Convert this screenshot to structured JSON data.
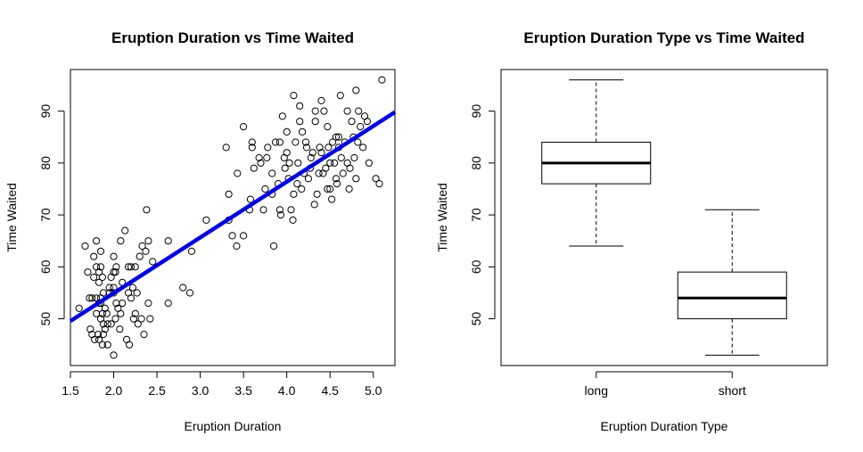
{
  "chart_data": [
    {
      "type": "scatter",
      "title": "Eruption Duration vs Time Waited",
      "xlabel": "Eruption Duration",
      "ylabel": "Time Waited",
      "xlim": [
        1.5,
        5.25
      ],
      "ylim": [
        41,
        98
      ],
      "xticks": [
        "1.5",
        "2.0",
        "2.5",
        "3.0",
        "3.5",
        "4.0",
        "4.5",
        "5.0"
      ],
      "yticks": [
        "50",
        "60",
        "70",
        "80",
        "90"
      ],
      "grid": false,
      "point_color": "#000000",
      "fit_line": {
        "intercept": 33.47,
        "slope": 10.73,
        "color": "#0000ee"
      },
      "points": [
        [
          1.6,
          52
        ],
        [
          1.67,
          64
        ],
        [
          1.7,
          59
        ],
        [
          1.72,
          54
        ],
        [
          1.73,
          48
        ],
        [
          1.75,
          47
        ],
        [
          1.75,
          54
        ],
        [
          1.77,
          62
        ],
        [
          1.77,
          58
        ],
        [
          1.78,
          46
        ],
        [
          1.8,
          54
        ],
        [
          1.8,
          60
        ],
        [
          1.8,
          51
        ],
        [
          1.8,
          65
        ],
        [
          1.82,
          47
        ],
        [
          1.83,
          53
        ],
        [
          1.83,
          57
        ],
        [
          1.83,
          46
        ],
        [
          1.83,
          59
        ],
        [
          1.85,
          53
        ],
        [
          1.85,
          63
        ],
        [
          1.85,
          60
        ],
        [
          1.85,
          50
        ],
        [
          1.85,
          54
        ],
        [
          1.87,
          51
        ],
        [
          1.87,
          45
        ],
        [
          1.87,
          58
        ],
        [
          1.88,
          55
        ],
        [
          1.88,
          49
        ],
        [
          1.88,
          47
        ],
        [
          1.9,
          48
        ],
        [
          1.9,
          52
        ],
        [
          1.92,
          51
        ],
        [
          1.93,
          49
        ],
        [
          1.93,
          45
        ],
        [
          1.95,
          55
        ],
        [
          1.95,
          56
        ],
        [
          1.97,
          58
        ],
        [
          1.97,
          49
        ],
        [
          2.0,
          62
        ],
        [
          2.0,
          56
        ],
        [
          2.0,
          59
        ],
        [
          2.0,
          55
        ],
        [
          2.0,
          43
        ],
        [
          2.02,
          59
        ],
        [
          2.02,
          50
        ],
        [
          2.03,
          53
        ],
        [
          2.03,
          60
        ],
        [
          2.05,
          52
        ],
        [
          2.07,
          48
        ],
        [
          2.08,
          51
        ],
        [
          2.08,
          65
        ],
        [
          2.1,
          53
        ],
        [
          2.1,
          57
        ],
        [
          2.13,
          67
        ],
        [
          2.15,
          46
        ],
        [
          2.17,
          60
        ],
        [
          2.17,
          55
        ],
        [
          2.18,
          45
        ],
        [
          2.2,
          60
        ],
        [
          2.2,
          54
        ],
        [
          2.22,
          56
        ],
        [
          2.23,
          50
        ],
        [
          2.25,
          51
        ],
        [
          2.25,
          60
        ],
        [
          2.27,
          55
        ],
        [
          2.28,
          49
        ],
        [
          2.3,
          62
        ],
        [
          2.32,
          50
        ],
        [
          2.33,
          64
        ],
        [
          2.35,
          47
        ],
        [
          2.37,
          63
        ],
        [
          2.38,
          71
        ],
        [
          2.4,
          65
        ],
        [
          2.4,
          53
        ],
        [
          2.42,
          50
        ],
        [
          2.45,
          61
        ],
        [
          2.63,
          65
        ],
        [
          2.63,
          53
        ],
        [
          2.8,
          56
        ],
        [
          2.88,
          55
        ],
        [
          2.9,
          63
        ],
        [
          3.07,
          69
        ],
        [
          3.3,
          83
        ],
        [
          3.33,
          74
        ],
        [
          3.33,
          69
        ],
        [
          3.37,
          66
        ],
        [
          3.42,
          64
        ],
        [
          3.43,
          78
        ],
        [
          3.5,
          87
        ],
        [
          3.5,
          66
        ],
        [
          3.57,
          71
        ],
        [
          3.58,
          73
        ],
        [
          3.6,
          83
        ],
        [
          3.6,
          84
        ],
        [
          3.62,
          79
        ],
        [
          3.68,
          81
        ],
        [
          3.7,
          80
        ],
        [
          3.73,
          71
        ],
        [
          3.75,
          75
        ],
        [
          3.77,
          81
        ],
        [
          3.78,
          83
        ],
        [
          3.83,
          74
        ],
        [
          3.83,
          78
        ],
        [
          3.85,
          64
        ],
        [
          3.87,
          84
        ],
        [
          3.9,
          76
        ],
        [
          3.92,
          71
        ],
        [
          3.92,
          84
        ],
        [
          3.93,
          70
        ],
        [
          3.95,
          89
        ],
        [
          3.97,
          81
        ],
        [
          3.98,
          79
        ],
        [
          4.0,
          86
        ],
        [
          4.0,
          82
        ],
        [
          4.02,
          77
        ],
        [
          4.03,
          80
        ],
        [
          4.05,
          71
        ],
        [
          4.07,
          69
        ],
        [
          4.08,
          74
        ],
        [
          4.08,
          93
        ],
        [
          4.1,
          84
        ],
        [
          4.12,
          76
        ],
        [
          4.13,
          80
        ],
        [
          4.15,
          88
        ],
        [
          4.15,
          91
        ],
        [
          4.17,
          75
        ],
        [
          4.18,
          86
        ],
        [
          4.2,
          78
        ],
        [
          4.22,
          84
        ],
        [
          4.23,
          83
        ],
        [
          4.25,
          77
        ],
        [
          4.27,
          79
        ],
        [
          4.28,
          81
        ],
        [
          4.3,
          82
        ],
        [
          4.32,
          72
        ],
        [
          4.33,
          88
        ],
        [
          4.33,
          90
        ],
        [
          4.35,
          74
        ],
        [
          4.37,
          78
        ],
        [
          4.38,
          83
        ],
        [
          4.4,
          82
        ],
        [
          4.4,
          92
        ],
        [
          4.42,
          78
        ],
        [
          4.43,
          90
        ],
        [
          4.45,
          79
        ],
        [
          4.47,
          87
        ],
        [
          4.47,
          75
        ],
        [
          4.48,
          83
        ],
        [
          4.5,
          80
        ],
        [
          4.5,
          75
        ],
        [
          4.52,
          73
        ],
        [
          4.53,
          84
        ],
        [
          4.55,
          80
        ],
        [
          4.57,
          77
        ],
        [
          4.57,
          85
        ],
        [
          4.58,
          76
        ],
        [
          4.6,
          85
        ],
        [
          4.6,
          83
        ],
        [
          4.62,
          93
        ],
        [
          4.63,
          81
        ],
        [
          4.65,
          78
        ],
        [
          4.67,
          84
        ],
        [
          4.7,
          80
        ],
        [
          4.7,
          90
        ],
        [
          4.72,
          75
        ],
        [
          4.73,
          79
        ],
        [
          4.75,
          88
        ],
        [
          4.77,
          85
        ],
        [
          4.78,
          81
        ],
        [
          4.8,
          77
        ],
        [
          4.8,
          94
        ],
        [
          4.82,
          84
        ],
        [
          4.83,
          90
        ],
        [
          4.85,
          87
        ],
        [
          4.88,
          83
        ],
        [
          4.9,
          89
        ],
        [
          4.93,
          88
        ],
        [
          4.95,
          80
        ],
        [
          5.03,
          77
        ],
        [
          5.07,
          76
        ],
        [
          5.1,
          96
        ]
      ]
    },
    {
      "type": "box",
      "title": "Eruption Duration Type vs Time Waited",
      "xlabel": "Eruption Duration Type",
      "ylabel": "Time Waited",
      "categories": [
        "long",
        "short"
      ],
      "ylim": [
        41,
        98
      ],
      "yticks": [
        "50",
        "60",
        "70",
        "80",
        "90"
      ],
      "boxes": [
        {
          "min": 64,
          "q1": 76,
          "median": 80,
          "q3": 84,
          "max": 96
        },
        {
          "min": 43,
          "q1": 50,
          "median": 54,
          "q3": 59,
          "max": 71
        }
      ]
    }
  ]
}
